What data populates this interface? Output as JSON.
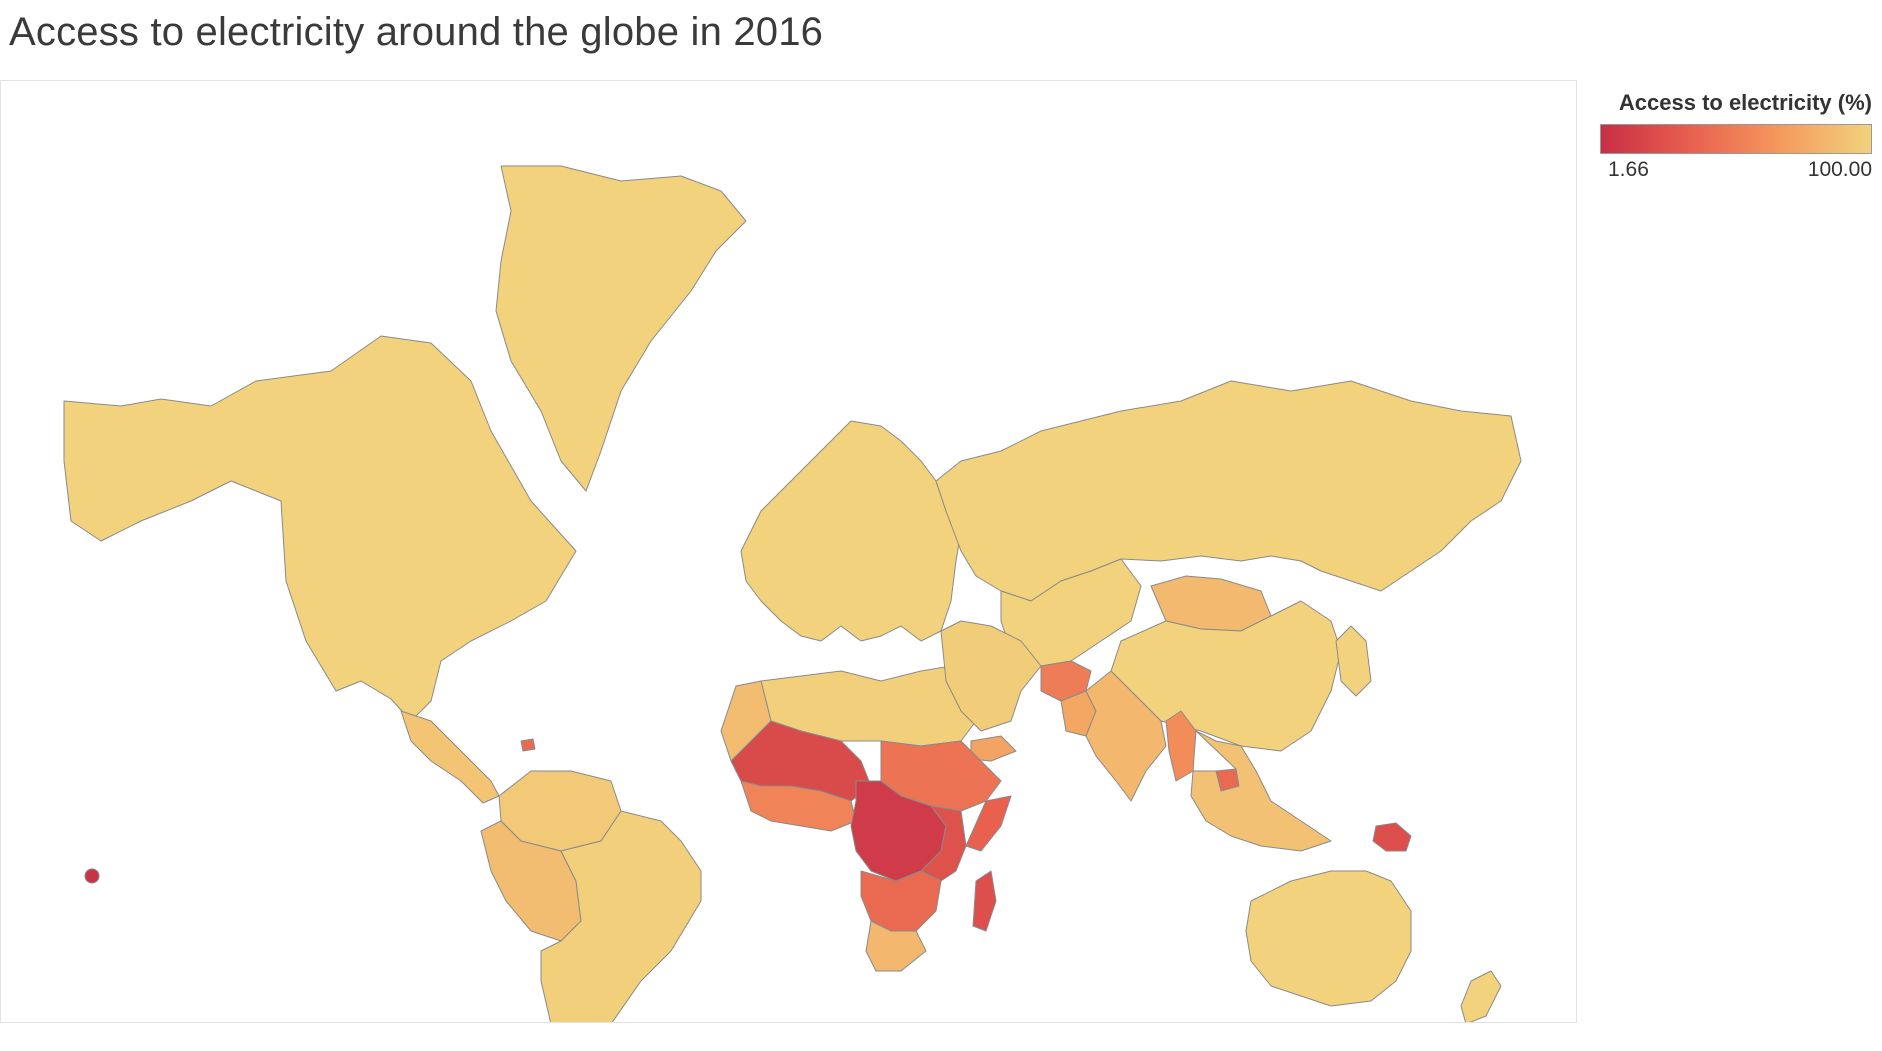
{
  "title": "Access to electricity around the globe in 2016",
  "legend": {
    "title": "Access to electricity (%)",
    "min_label": "1.66",
    "max_label": "100.00",
    "colors": [
      "#c72e45",
      "#e8604f",
      "#f59a5d",
      "#f2d27c"
    ]
  },
  "chart_data": {
    "type": "choropleth",
    "measure": "Access to electricity (%)",
    "year": 2016,
    "scale": {
      "min": 1.66,
      "max": 100.0
    },
    "colors": {
      "low": "#c72e45",
      "mid_low": "#e8604f",
      "mid_high": "#f59a5d",
      "high": "#f2d27c"
    },
    "regions": [
      {
        "region": "North America",
        "value": 100
      },
      {
        "region": "Greenland",
        "value": 100
      },
      {
        "region": "Central America",
        "value": 92
      },
      {
        "region": "Haiti",
        "value": 40
      },
      {
        "region": "Venezuela / Guyana / Colombia",
        "value": 95
      },
      {
        "region": "Peru / Bolivia",
        "value": 88
      },
      {
        "region": "Brazil / Southern South America",
        "value": 99
      },
      {
        "region": "Europe",
        "value": 100
      },
      {
        "region": "Russia",
        "value": 100
      },
      {
        "region": "Kazakhstan / Central Asia",
        "value": 100
      },
      {
        "region": "Mongolia",
        "value": 86
      },
      {
        "region": "China",
        "value": 100
      },
      {
        "region": "North Africa",
        "value": 99
      },
      {
        "region": "Morocco / Western Sahara",
        "value": 88
      },
      {
        "region": "Middle East",
        "value": 97
      },
      {
        "region": "Yemen",
        "value": 73
      },
      {
        "region": "Afghanistan",
        "value": 50
      },
      {
        "region": "Pakistan",
        "value": 74
      },
      {
        "region": "India",
        "value": 85
      },
      {
        "region": "Myanmar",
        "value": 60
      },
      {
        "region": "Cambodia",
        "value": 40
      },
      {
        "region": "Southeast Asia",
        "value": 90
      },
      {
        "region": "Papua New Guinea",
        "value": 23
      },
      {
        "region": "Australia",
        "value": 100
      },
      {
        "region": "New Zealand",
        "value": 100
      },
      {
        "region": "West Africa (Sahel)",
        "value": 20
      },
      {
        "region": "Coastal West Africa",
        "value": 55
      },
      {
        "region": "Sudan / Ethiopia",
        "value": 45
      },
      {
        "region": "Somalia",
        "value": 35
      },
      {
        "region": "Central Africa",
        "value": 10
      },
      {
        "region": "East Africa",
        "value": 25
      },
      {
        "region": "Southern Africa",
        "value": 40
      },
      {
        "region": "South Africa / Botswana",
        "value": 84
      },
      {
        "region": "Madagascar",
        "value": 23
      },
      {
        "region": "Pacific Island (Kiribati area)",
        "value": 5
      },
      {
        "region": "Japan / Korea",
        "value": 100
      }
    ]
  }
}
